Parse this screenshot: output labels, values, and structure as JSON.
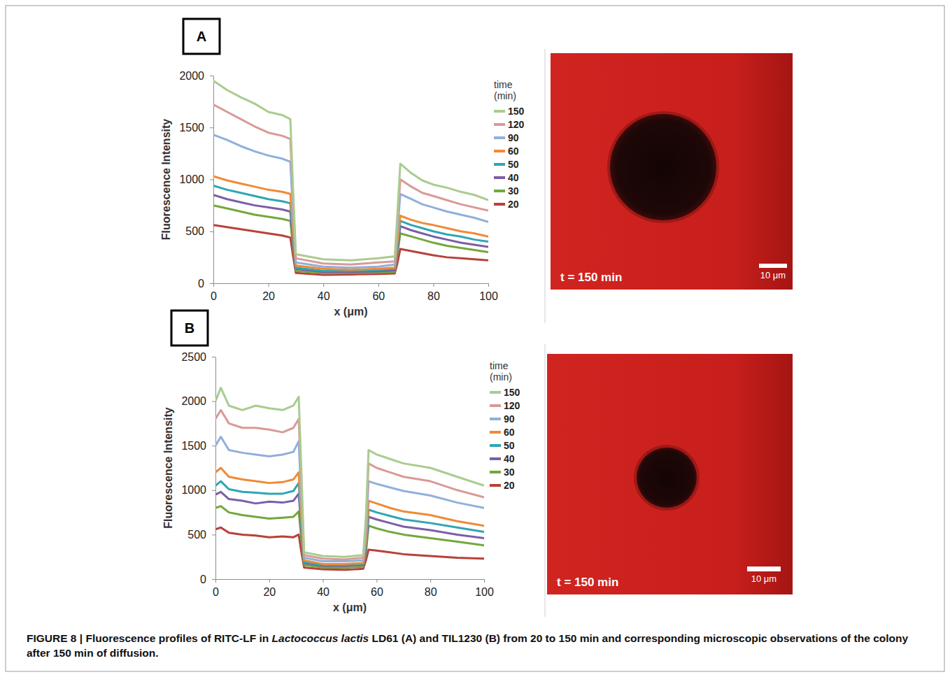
{
  "chart_data": [
    {
      "type": "line",
      "panel_label": "A",
      "xlabel": "x (μm)",
      "ylabel": "Fluorescence Intensity",
      "legend": "right",
      "legend_title": "time (min)",
      "x": [
        0,
        5,
        10,
        15,
        20,
        25,
        28,
        29,
        30,
        40,
        50,
        60,
        66,
        67,
        68,
        72,
        76,
        80,
        85,
        90,
        95,
        100
      ],
      "xlim": [
        0,
        100
      ],
      "xticks": [
        0,
        20,
        40,
        60,
        80,
        100
      ],
      "ylim": [
        0,
        2000
      ],
      "yticks": [
        0,
        500,
        1000,
        1500,
        2000
      ],
      "series": [
        {
          "name": "150",
          "color": "#a9cc8e",
          "values": [
            1950,
            1860,
            1790,
            1730,
            1650,
            1620,
            1580,
            900,
            280,
            230,
            220,
            240,
            260,
            700,
            1150,
            1060,
            990,
            950,
            920,
            880,
            850,
            800
          ]
        },
        {
          "name": "120",
          "color": "#d99a96",
          "values": [
            1720,
            1650,
            1580,
            1510,
            1450,
            1420,
            1390,
            800,
            240,
            190,
            180,
            200,
            210,
            600,
            1000,
            930,
            870,
            840,
            800,
            760,
            730,
            700
          ]
        },
        {
          "name": "90",
          "color": "#8fb0dc",
          "values": [
            1430,
            1380,
            1320,
            1270,
            1230,
            1200,
            1170,
            650,
            200,
            160,
            150,
            160,
            180,
            520,
            860,
            810,
            760,
            730,
            690,
            660,
            630,
            590
          ]
        },
        {
          "name": "60",
          "color": "#f08a35",
          "values": [
            1030,
            990,
            960,
            930,
            900,
            880,
            860,
            500,
            170,
            140,
            130,
            140,
            150,
            410,
            650,
            610,
            580,
            560,
            530,
            500,
            480,
            450
          ]
        },
        {
          "name": "50",
          "color": "#2fa5b5",
          "values": [
            940,
            900,
            870,
            840,
            810,
            790,
            770,
            450,
            150,
            120,
            120,
            130,
            140,
            370,
            600,
            560,
            530,
            500,
            470,
            450,
            420,
            400
          ]
        },
        {
          "name": "40",
          "color": "#7b5ea7",
          "values": [
            850,
            810,
            780,
            750,
            730,
            710,
            690,
            400,
            140,
            110,
            110,
            115,
            125,
            330,
            550,
            510,
            480,
            450,
            420,
            390,
            370,
            350
          ]
        },
        {
          "name": "30",
          "color": "#72a83c",
          "values": [
            750,
            720,
            690,
            660,
            640,
            620,
            600,
            350,
            120,
            100,
            100,
            105,
            110,
            290,
            480,
            450,
            420,
            390,
            360,
            340,
            320,
            300
          ]
        },
        {
          "name": "20",
          "color": "#b8413a",
          "values": [
            560,
            540,
            520,
            500,
            480,
            460,
            440,
            260,
            100,
            80,
            85,
            90,
            95,
            200,
            330,
            310,
            290,
            270,
            250,
            240,
            230,
            220
          ]
        }
      ]
    },
    {
      "type": "line",
      "panel_label": "B",
      "xlabel": "x (μm)",
      "ylabel": "Fluorescence Intensity",
      "legend": "right",
      "legend_title": "time (min)",
      "x": [
        0,
        2,
        5,
        10,
        15,
        20,
        25,
        29,
        31,
        32,
        33,
        40,
        48,
        55,
        56,
        57,
        60,
        65,
        70,
        80,
        90,
        100
      ],
      "xlim": [
        0,
        100
      ],
      "xticks": [
        0,
        20,
        40,
        60,
        80,
        100
      ],
      "ylim": [
        0,
        2500
      ],
      "yticks": [
        0,
        500,
        1000,
        1500,
        2000,
        2500
      ],
      "series": [
        {
          "name": "150",
          "color": "#a9cc8e",
          "values": [
            2000,
            2150,
            1950,
            1900,
            1950,
            1920,
            1900,
            1950,
            2050,
            1200,
            300,
            260,
            250,
            270,
            700,
            1450,
            1400,
            1350,
            1300,
            1250,
            1150,
            1050
          ]
        },
        {
          "name": "120",
          "color": "#d99a96",
          "values": [
            1800,
            1900,
            1750,
            1700,
            1700,
            1680,
            1650,
            1700,
            1800,
            1000,
            270,
            230,
            220,
            240,
            600,
            1300,
            1250,
            1200,
            1150,
            1100,
            1000,
            920
          ]
        },
        {
          "name": "90",
          "color": "#8fb0dc",
          "values": [
            1500,
            1600,
            1450,
            1420,
            1400,
            1380,
            1400,
            1430,
            1550,
            850,
            240,
            200,
            200,
            210,
            520,
            1100,
            1070,
            1030,
            990,
            940,
            860,
            800
          ]
        },
        {
          "name": "60",
          "color": "#f08a35",
          "values": [
            1200,
            1250,
            1150,
            1120,
            1100,
            1080,
            1090,
            1120,
            1200,
            680,
            210,
            170,
            170,
            180,
            420,
            880,
            850,
            800,
            760,
            720,
            650,
            600
          ]
        },
        {
          "name": "50",
          "color": "#2fa5b5",
          "values": [
            1050,
            1100,
            1010,
            980,
            970,
            960,
            960,
            990,
            1080,
            600,
            190,
            160,
            160,
            170,
            370,
            780,
            750,
            710,
            670,
            630,
            580,
            530
          ]
        },
        {
          "name": "40",
          "color": "#7b5ea7",
          "values": [
            950,
            980,
            900,
            880,
            850,
            870,
            860,
            880,
            960,
            540,
            180,
            150,
            150,
            160,
            330,
            700,
            670,
            630,
            590,
            550,
            500,
            460
          ]
        },
        {
          "name": "30",
          "color": "#72a83c",
          "values": [
            800,
            820,
            750,
            720,
            700,
            680,
            690,
            700,
            760,
            440,
            160,
            130,
            130,
            140,
            290,
            600,
            570,
            530,
            500,
            460,
            420,
            380
          ]
        },
        {
          "name": "20",
          "color": "#b8413a",
          "values": [
            560,
            580,
            520,
            500,
            490,
            470,
            480,
            470,
            500,
            300,
            130,
            110,
            105,
            115,
            210,
            330,
            320,
            300,
            280,
            260,
            240,
            230
          ]
        }
      ]
    }
  ],
  "images": [
    {
      "time_label": "t = 150 min",
      "scale_label": "10 μm"
    },
    {
      "time_label": "t = 150 min",
      "scale_label": "10 μm"
    }
  ],
  "caption": [
    "FIGURE 8 | Fluorescence profiles of RITC-LF in ",
    "Lactococcus lactis",
    " LD61 (A) and TIL1230 (B) from 20 to 150 min and corresponding microscopic observations of the colony after 150 min of diffusion."
  ]
}
